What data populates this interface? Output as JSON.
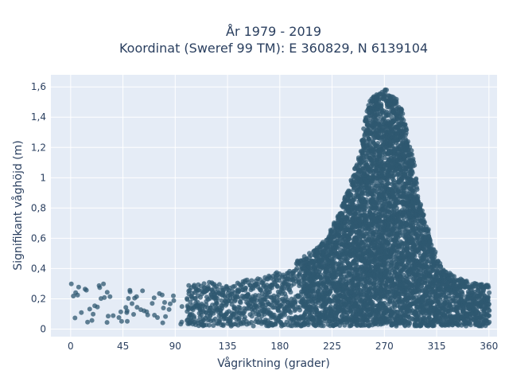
{
  "chart_data": {
    "type": "scatter",
    "title_line1": "År 1979 - 2019",
    "title_line2": "Koordinat (Sweref 99 TM): E 360829, N 6139104",
    "xlabel": "Vågriktning (grader)",
    "ylabel": "Signifikant våghöjd (m)",
    "xlim": [
      -17,
      367
    ],
    "ylim": [
      -0.05,
      1.68
    ],
    "xticks": [
      {
        "value": 0,
        "label": "0"
      },
      {
        "value": 45,
        "label": "45"
      },
      {
        "value": 90,
        "label": "90"
      },
      {
        "value": 135,
        "label": "135"
      },
      {
        "value": 180,
        "label": "180"
      },
      {
        "value": 225,
        "label": "225"
      },
      {
        "value": 270,
        "label": "270"
      },
      {
        "value": 315,
        "label": "315"
      },
      {
        "value": 360,
        "label": "360"
      }
    ],
    "yticks": [
      {
        "value": 0,
        "label": "0"
      },
      {
        "value": 0.2,
        "label": "0,2"
      },
      {
        "value": 0.4,
        "label": "0,4"
      },
      {
        "value": 0.6,
        "label": "0,6"
      },
      {
        "value": 0.8,
        "label": "0,8"
      },
      {
        "value": 1.0,
        "label": "1"
      },
      {
        "value": 1.2,
        "label": "1,2"
      },
      {
        "value": 1.4,
        "label": "1,4"
      },
      {
        "value": 1.6,
        "label": "1,6"
      }
    ],
    "grid": true,
    "marker_color": "#2f5870",
    "plot_bg": "#e5ecf6",
    "upper_envelope": [
      [
        0,
        0.3
      ],
      [
        15,
        0.3
      ],
      [
        30,
        0.3
      ],
      [
        45,
        0.28
      ],
      [
        60,
        0.27
      ],
      [
        75,
        0.27
      ],
      [
        90,
        0.27
      ],
      [
        105,
        0.3
      ],
      [
        120,
        0.31
      ],
      [
        135,
        0.3
      ],
      [
        150,
        0.33
      ],
      [
        165,
        0.35
      ],
      [
        180,
        0.38
      ],
      [
        190,
        0.42
      ],
      [
        200,
        0.48
      ],
      [
        210,
        0.52
      ],
      [
        220,
        0.6
      ],
      [
        230,
        0.75
      ],
      [
        240,
        0.95
      ],
      [
        250,
        1.2
      ],
      [
        255,
        1.45
      ],
      [
        260,
        1.55
      ],
      [
        265,
        1.56
      ],
      [
        270,
        1.6
      ],
      [
        275,
        1.55
      ],
      [
        280,
        1.52
      ],
      [
        285,
        1.45
      ],
      [
        290,
        1.32
      ],
      [
        295,
        1.15
      ],
      [
        300,
        0.85
      ],
      [
        305,
        0.75
      ],
      [
        310,
        0.58
      ],
      [
        315,
        0.5
      ],
      [
        320,
        0.4
      ],
      [
        325,
        0.4
      ],
      [
        330,
        0.35
      ],
      [
        340,
        0.32
      ],
      [
        350,
        0.3
      ],
      [
        360,
        0.29
      ]
    ],
    "lower_bound": 0.02
  }
}
